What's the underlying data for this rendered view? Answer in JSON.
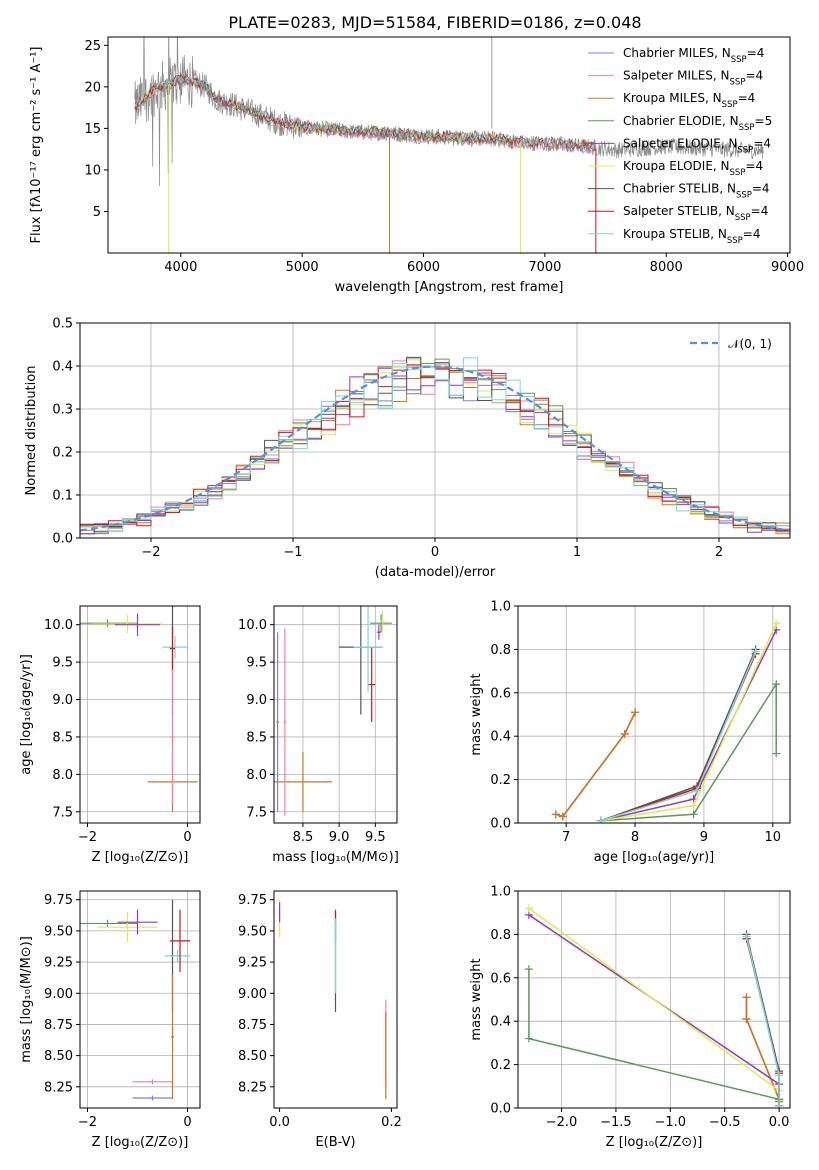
{
  "figure": {
    "title": "PLATE=0283, MJD=51584, FIBERID=0186, z=0.048",
    "series_colors": {
      "Chabrier MILES": "#7b7fe0",
      "Salpeter MILES": "#f07fb0",
      "Kroupa MILES": "#c87822",
      "Chabrier ELODIE": "#5a9a5a",
      "Salpeter ELODIE": "#9a38b8",
      "Kroupa ELODIE": "#dcec50",
      "Chabrier STELIB": "#555555",
      "Salpeter STELIB": "#c81818",
      "Kroupa STELIB": "#78d8d8"
    }
  },
  "chart_data": [
    {
      "id": "spectrum",
      "type": "line",
      "xlabel": "wavelength [Angstrom, rest frame]",
      "ylabel": "Flux [fλ10⁻¹⁷ erg cm⁻² s⁻¹ A⁻¹]",
      "xlim": [
        3400,
        9020
      ],
      "ylim": [
        0,
        26
      ],
      "xticks": [
        4000,
        5000,
        6000,
        7000,
        8000,
        9000
      ],
      "yticks": [
        5,
        10,
        15,
        20,
        25
      ],
      "legend_position": "right",
      "legend": [
        {
          "model": "Chabrier MILES",
          "nssp": "4"
        },
        {
          "model": "Salpeter MILES",
          "nssp": "4"
        },
        {
          "model": "Kroupa MILES",
          "nssp": "4"
        },
        {
          "model": "Chabrier ELODIE",
          "nssp": "5"
        },
        {
          "model": "Salpeter ELODIE",
          "nssp": "4"
        },
        {
          "model": "Kroupa ELODIE",
          "nssp": "4"
        },
        {
          "model": "Chabrier STELIB",
          "nssp": "4"
        },
        {
          "model": "Salpeter STELIB",
          "nssp": "4"
        },
        {
          "model": "Kroupa STELIB",
          "nssp": "4"
        }
      ],
      "continuum": {
        "x": [
          3620,
          3700,
          3800,
          3900,
          4000,
          4100,
          4200,
          4300,
          4400,
          4600,
          4800,
          5000,
          5200,
          5400,
          5600,
          5800,
          6000,
          6200,
          6400,
          6600,
          6800,
          7000,
          7200,
          7400,
          7600,
          7800,
          8000,
          8200,
          8400,
          8600,
          8800
        ],
        "y": [
          17.5,
          18.6,
          19.8,
          20.3,
          20.9,
          20.6,
          20.1,
          18.4,
          18.0,
          16.9,
          15.7,
          15.1,
          14.9,
          14.6,
          14.5,
          14.3,
          14.1,
          13.9,
          13.8,
          13.7,
          13.3,
          13.2,
          13.0,
          12.7,
          12.4,
          12.6,
          12.8,
          12.7,
          12.5,
          12.4,
          12.3
        ]
      },
      "notable_features": [
        {
          "x": 3900,
          "y": 0,
          "series": "Kroupa ELODIE"
        },
        {
          "x": 5720,
          "y": 0,
          "series": "Kroupa MILES"
        },
        {
          "x": 6800,
          "y": 0,
          "series": "Kroupa ELODIE"
        },
        {
          "x": 7420,
          "y": 0,
          "series": "Salpeter STELIB"
        },
        {
          "x": 6563,
          "y": 26,
          "series": "data"
        }
      ]
    },
    {
      "id": "residuals",
      "type": "line",
      "xlabel": "(data-model)/error",
      "ylabel": "Normed distribution",
      "xlim": [
        -2.5,
        2.5
      ],
      "ylim": [
        0,
        0.5
      ],
      "xticks": [
        -2,
        -1,
        0,
        1,
        2
      ],
      "yticks": [
        0.0,
        0.1,
        0.2,
        0.3,
        0.4,
        0.5
      ],
      "grid": true,
      "legend_position": "top-right",
      "reference_curve": {
        "label": "𝒩(0, 1)",
        "mu": 0,
        "sigma": 1
      },
      "hist_bins": 50
    },
    {
      "id": "age-vs-Z",
      "type": "scatter",
      "xlabel": "Z [log₁₀(Z/Z⊙)]",
      "ylabel": "age  [log₁₀(age/yr)]",
      "xlim": [
        -2.15,
        0.25
      ],
      "ylim": [
        7.35,
        10.25
      ],
      "xticks": [
        -2,
        0
      ],
      "yticks": [
        7.5,
        8.0,
        8.5,
        9.0,
        9.5,
        10.0
      ],
      "grid": true,
      "points": [
        {
          "x": -1.6,
          "y": 10.02,
          "xerr": 0.6,
          "yerr": 0.05,
          "series": "Chabrier ELODIE"
        },
        {
          "x": -1.2,
          "y": 10.01,
          "xerr": 0.7,
          "yerr": 0.12,
          "series": "Kroupa ELODIE"
        },
        {
          "x": -1.0,
          "y": 10.0,
          "xerr": 0.45,
          "yerr": 0.15,
          "series": "Salpeter ELODIE"
        },
        {
          "x": -0.3,
          "y": 9.7,
          "xerr": 0.08,
          "yerr": 0.9,
          "series": "Chabrier STELIB"
        },
        {
          "x": -0.25,
          "y": 9.7,
          "xerr": 0.25,
          "yerr": 0.15,
          "series": "Kroupa STELIB"
        },
        {
          "x": -0.3,
          "y": 9.68,
          "xerr": 0.05,
          "yerr": 0.3,
          "series": "Salpeter STELIB"
        },
        {
          "x": -0.3,
          "y": 7.9,
          "xerr": 0.5,
          "yerr": 0.4,
          "series": "Kroupa MILES"
        },
        {
          "x": -0.3,
          "y": 8.5,
          "xerr": 0.05,
          "yerr": 0.9,
          "series": "Salpeter MILES"
        }
      ]
    },
    {
      "id": "age-vs-mass",
      "type": "scatter",
      "xlabel": "mass [log₁₀(M/M⊙)]",
      "ylabel": "",
      "xlim": [
        8.1,
        9.8
      ],
      "ylim": [
        7.35,
        10.25
      ],
      "xticks": [
        8.5,
        9.0,
        9.5
      ],
      "yticks": [
        7.5,
        8.0,
        8.5,
        9.0,
        9.5,
        10.0
      ],
      "grid": true,
      "points": [
        {
          "x": 9.58,
          "y": 10.02,
          "xerr": 0.15,
          "yerr": 0.12,
          "series": "Chabrier ELODIE"
        },
        {
          "x": 9.6,
          "y": 10.05,
          "xerr": 0.03,
          "yerr": 0.15,
          "series": "Kroupa ELODIE"
        },
        {
          "x": 9.55,
          "y": 9.9,
          "xerr": 0.03,
          "yerr": 0.1,
          "series": "Salpeter ELODIE"
        },
        {
          "x": 9.3,
          "y": 9.7,
          "xerr": 0.3,
          "yerr": 0.9,
          "series": "Chabrier STELIB"
        },
        {
          "x": 9.45,
          "y": 9.2,
          "xerr": 0.05,
          "yerr": 0.5,
          "series": "Salpeter STELIB"
        },
        {
          "x": 9.4,
          "y": 9.7,
          "xerr": 0.2,
          "yerr": 0.6,
          "series": "Kroupa STELIB"
        },
        {
          "x": 8.15,
          "y": 8.7,
          "xerr": 0.02,
          "yerr": 1.2,
          "series": "Chabrier MILES"
        },
        {
          "x": 8.5,
          "y": 7.9,
          "xerr": 0.4,
          "yerr": 0.4,
          "series": "Kroupa MILES"
        },
        {
          "x": 8.25,
          "y": 8.7,
          "xerr": 0.02,
          "yerr": 1.25,
          "series": "Salpeter MILES"
        }
      ]
    },
    {
      "id": "massweight-vs-age",
      "type": "line",
      "xlabel": "age  [log₁₀(age/yr)]",
      "ylabel": "mass weight",
      "xlim": [
        6.3,
        10.25
      ],
      "ylim": [
        0,
        1.0
      ],
      "xticks": [
        7,
        8,
        9,
        10
      ],
      "yticks": [
        0.0,
        0.2,
        0.4,
        0.6,
        0.8,
        1.0
      ],
      "grid": true,
      "series": [
        {
          "name": "Chabrier MILES",
          "x": [
            6.85,
            6.95,
            7.85,
            8.0
          ],
          "y": [
            0.04,
            0.03,
            0.41,
            0.51
          ]
        },
        {
          "name": "Salpeter MILES",
          "x": [
            6.85,
            6.95,
            7.85,
            8.0
          ],
          "y": [
            0.04,
            0.03,
            0.41,
            0.51
          ]
        },
        {
          "name": "Kroupa MILES",
          "x": [
            6.85,
            6.95,
            7.85,
            8.0
          ],
          "y": [
            0.04,
            0.03,
            0.41,
            0.51
          ]
        },
        {
          "name": "Chabrier ELODIE",
          "x": [
            7.5,
            8.85,
            10.05,
            10.05
          ],
          "y": [
            0.01,
            0.04,
            0.64,
            0.32
          ]
        },
        {
          "name": "Salpeter ELODIE",
          "x": [
            7.5,
            8.85,
            10.05
          ],
          "y": [
            0.01,
            0.11,
            0.89
          ]
        },
        {
          "name": "Kroupa ELODIE",
          "x": [
            7.5,
            8.85,
            10.05
          ],
          "y": [
            0.01,
            0.08,
            0.92
          ]
        },
        {
          "name": "Chabrier STELIB",
          "x": [
            7.5,
            8.9,
            9.75
          ],
          "y": [
            0.01,
            0.17,
            0.8
          ]
        },
        {
          "name": "Salpeter STELIB",
          "x": [
            7.5,
            8.9,
            9.75
          ],
          "y": [
            0.01,
            0.16,
            0.78
          ]
        },
        {
          "name": "Kroupa STELIB",
          "x": [
            7.5,
            8.9,
            9.75
          ],
          "y": [
            0.01,
            0.15,
            0.79
          ]
        }
      ]
    },
    {
      "id": "mass-vs-Z",
      "type": "scatter",
      "xlabel": "Z [log₁₀(Z/Z⊙)]",
      "ylabel": "mass [log₁₀(M/M⊙)]",
      "xlim": [
        -2.15,
        0.25
      ],
      "ylim": [
        8.08,
        9.82
      ],
      "xticks": [
        -2,
        0
      ],
      "yticks": [
        8.25,
        8.5,
        8.75,
        9.0,
        9.25,
        9.5,
        9.75
      ],
      "grid": true,
      "points": [
        {
          "x": -1.6,
          "y": 9.56,
          "xerr": 0.6,
          "yerr": 0.03,
          "series": "Chabrier ELODIE"
        },
        {
          "x": -1.2,
          "y": 9.53,
          "xerr": 0.6,
          "yerr": 0.12,
          "series": "Kroupa ELODIE"
        },
        {
          "x": -1.0,
          "y": 9.57,
          "xerr": 0.4,
          "yerr": 0.1,
          "series": "Salpeter ELODIE"
        },
        {
          "x": -0.3,
          "y": 9.3,
          "xerr": 0.05,
          "yerr": 0.45,
          "series": "Chabrier STELIB"
        },
        {
          "x": -0.2,
          "y": 9.3,
          "xerr": 0.25,
          "yerr": 0.05,
          "series": "Kroupa STELIB"
        },
        {
          "x": -0.15,
          "y": 9.42,
          "xerr": 0.2,
          "yerr": 0.25,
          "series": "Salpeter STELIB"
        },
        {
          "x": -0.7,
          "y": 8.29,
          "xerr": 0.4,
          "yerr": 0.02,
          "series": "Salpeter MILES"
        },
        {
          "x": -0.7,
          "y": 8.16,
          "xerr": 0.4,
          "yerr": 0.02,
          "series": "Chabrier MILES"
        },
        {
          "x": -0.3,
          "y": 8.65,
          "xerr": 0.03,
          "yerr": 0.5,
          "series": "Kroupa MILES"
        }
      ]
    },
    {
      "id": "mass-vs-EBV",
      "type": "scatter",
      "xlabel": "E(B-V)",
      "ylabel": "",
      "xlim": [
        -0.01,
        0.21
      ],
      "ylim": [
        8.08,
        9.82
      ],
      "xticks": [
        0.0,
        0.2
      ],
      "yticks": [
        8.25,
        8.5,
        8.75,
        9.0,
        9.25,
        9.5,
        9.75
      ],
      "grid": false,
      "points": [
        {
          "x": 0.0,
          "y": 9.6,
          "xerr": 0.0,
          "yerr": 0.15,
          "series": "Kroupa ELODIE"
        },
        {
          "x": 0.0,
          "y": 9.65,
          "xerr": 0.0,
          "yerr": 0.08,
          "series": "Salpeter ELODIE"
        },
        {
          "x": 0.1,
          "y": 9.25,
          "xerr": 0.0,
          "yerr": 0.4,
          "series": "Chabrier STELIB"
        },
        {
          "x": 0.1,
          "y": 9.55,
          "xerr": 0.0,
          "yerr": 0.12,
          "series": "Salpeter STELIB"
        },
        {
          "x": 0.1,
          "y": 9.3,
          "xerr": 0.0,
          "yerr": 0.3,
          "series": "Kroupa STELIB"
        },
        {
          "x": 0.19,
          "y": 8.6,
          "xerr": 0.0,
          "yerr": 0.35,
          "series": "Salpeter MILES"
        },
        {
          "x": 0.19,
          "y": 8.5,
          "xerr": 0.0,
          "yerr": 0.35,
          "series": "Kroupa MILES"
        }
      ]
    },
    {
      "id": "massweight-vs-Z",
      "type": "line",
      "xlabel": "Z [log₁₀(Z/Z⊙)]",
      "ylabel": "mass weight",
      "xlim": [
        -2.4,
        0.1
      ],
      "ylim": [
        0,
        1.0
      ],
      "xticks": [
        -2.0,
        -1.5,
        -1.0,
        -0.5,
        0.0
      ],
      "yticks": [
        0.0,
        0.2,
        0.4,
        0.6,
        0.8,
        1.0
      ],
      "grid": true,
      "series": [
        {
          "name": "Chabrier MILES",
          "x": [
            -0.3,
            -0.3,
            0.0,
            0.0
          ],
          "y": [
            0.51,
            0.41,
            0.04,
            0.03
          ]
        },
        {
          "name": "Salpeter MILES",
          "x": [
            -0.3,
            -0.3,
            0.0,
            0.0
          ],
          "y": [
            0.51,
            0.41,
            0.04,
            0.03
          ]
        },
        {
          "name": "Kroupa MILES",
          "x": [
            -0.3,
            -0.3,
            0.0,
            0.0
          ],
          "y": [
            0.51,
            0.41,
            0.04,
            0.03
          ]
        },
        {
          "name": "Chabrier ELODIE",
          "x": [
            -2.3,
            -2.3,
            0.0,
            0.0
          ],
          "y": [
            0.64,
            0.32,
            0.04,
            0.01
          ]
        },
        {
          "name": "Salpeter ELODIE",
          "x": [
            -2.3,
            0.0,
            0.0
          ],
          "y": [
            0.89,
            0.11,
            0.01
          ]
        },
        {
          "name": "Kroupa ELODIE",
          "x": [
            -2.3,
            0.0,
            0.0
          ],
          "y": [
            0.92,
            0.08,
            0.01
          ]
        },
        {
          "name": "Chabrier STELIB",
          "x": [
            -0.3,
            0.0,
            0.0
          ],
          "y": [
            0.8,
            0.17,
            0.01
          ]
        },
        {
          "name": "Salpeter STELIB",
          "x": [
            -0.3,
            0.0,
            0.0
          ],
          "y": [
            0.78,
            0.16,
            0.01
          ]
        },
        {
          "name": "Kroupa STELIB",
          "x": [
            -0.3,
            0.0,
            0.0
          ],
          "y": [
            0.79,
            0.15,
            0.01
          ]
        }
      ]
    }
  ]
}
